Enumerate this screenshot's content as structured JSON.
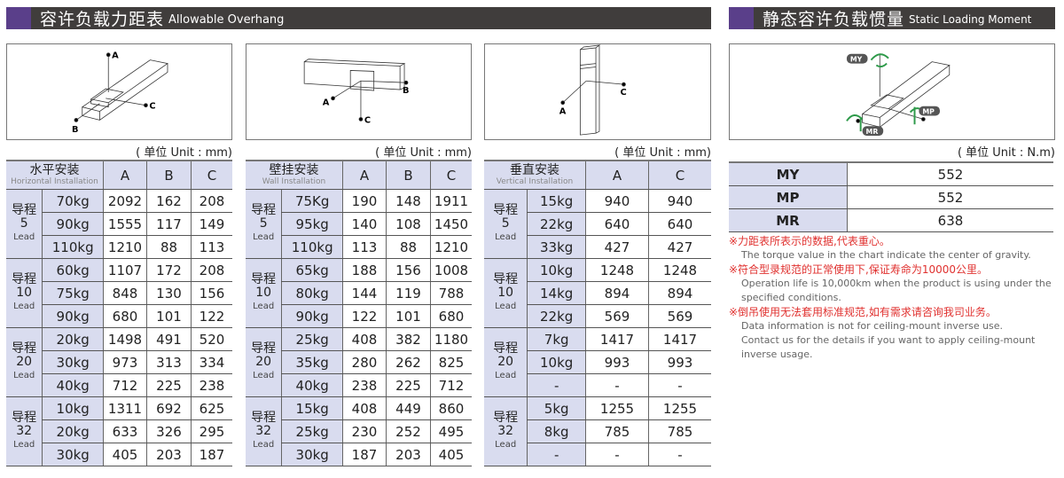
{
  "overhang": {
    "title_zh": "容许负载力距表",
    "title_en": "Allowable Overhang",
    "unit": "( 单位 Unit : mm)",
    "lead_label": "Lead",
    "lead_zh": "导程",
    "diagram_labels": {
      "a": "A",
      "b": "B",
      "c": "C"
    },
    "tables": [
      {
        "name_zh": "水平安装",
        "name_en": "Horizontal Installation",
        "columns": [
          "A",
          "B",
          "C"
        ],
        "groups": [
          {
            "lead": "5",
            "rows": [
              [
                "70kg",
                "2092",
                "162",
                "208"
              ],
              [
                "90kg",
                "1555",
                "117",
                "149"
              ],
              [
                "110kg",
                "1210",
                "88",
                "113"
              ]
            ]
          },
          {
            "lead": "10",
            "rows": [
              [
                "60kg",
                "1107",
                "172",
                "208"
              ],
              [
                "75kg",
                "848",
                "130",
                "156"
              ],
              [
                "90kg",
                "680",
                "101",
                "122"
              ]
            ]
          },
          {
            "lead": "20",
            "rows": [
              [
                "20kg",
                "1498",
                "491",
                "520"
              ],
              [
                "30kg",
                "973",
                "313",
                "334"
              ],
              [
                "40kg",
                "712",
                "225",
                "238"
              ]
            ]
          },
          {
            "lead": "32",
            "rows": [
              [
                "10kg",
                "1311",
                "692",
                "625"
              ],
              [
                "20kg",
                "633",
                "326",
                "295"
              ],
              [
                "30kg",
                "405",
                "203",
                "187"
              ]
            ]
          }
        ]
      },
      {
        "name_zh": "壁挂安装",
        "name_en": "Wall Installation",
        "columns": [
          "A",
          "B",
          "C"
        ],
        "groups": [
          {
            "lead": "5",
            "rows": [
              [
                "75Kg",
                "190",
                "148",
                "1911"
              ],
              [
                "95kg",
                "140",
                "108",
                "1450"
              ],
              [
                "110kg",
                "113",
                "88",
                "1210"
              ]
            ]
          },
          {
            "lead": "10",
            "rows": [
              [
                "65kg",
                "188",
                "156",
                "1008"
              ],
              [
                "80kg",
                "144",
                "119",
                "788"
              ],
              [
                "90kg",
                "122",
                "101",
                "680"
              ]
            ]
          },
          {
            "lead": "20",
            "rows": [
              [
                "25kg",
                "408",
                "382",
                "1180"
              ],
              [
                "35kg",
                "280",
                "262",
                "825"
              ],
              [
                "40kg",
                "238",
                "225",
                "712"
              ]
            ]
          },
          {
            "lead": "32",
            "rows": [
              [
                "15kg",
                "408",
                "449",
                "860"
              ],
              [
                "25kg",
                "230",
                "252",
                "495"
              ],
              [
                "30kg",
                "187",
                "203",
                "405"
              ]
            ]
          }
        ]
      },
      {
        "name_zh": "垂直安装",
        "name_en": "Vertical Installation",
        "columns": [
          "A",
          "C"
        ],
        "groups": [
          {
            "lead": "5",
            "rows": [
              [
                "15kg",
                "940",
                "940"
              ],
              [
                "22kg",
                "640",
                "640"
              ],
              [
                "33kg",
                "427",
                "427"
              ]
            ]
          },
          {
            "lead": "10",
            "rows": [
              [
                "10kg",
                "1248",
                "1248"
              ],
              [
                "14kg",
                "894",
                "894"
              ],
              [
                "22kg",
                "569",
                "569"
              ]
            ]
          },
          {
            "lead": "20",
            "rows": [
              [
                "7kg",
                "1417",
                "1417"
              ],
              [
                "10kg",
                "993",
                "993"
              ],
              [
                "-",
                "-",
                "-"
              ]
            ]
          },
          {
            "lead": "32",
            "rows": [
              [
                "5kg",
                "1255",
                "1255"
              ],
              [
                "8kg",
                "785",
                "785"
              ],
              [
                "-",
                "-",
                "-"
              ]
            ]
          }
        ]
      }
    ]
  },
  "moment": {
    "title_zh": "静态容许负载惯量",
    "title_en": "Static Loading Moment",
    "unit": "( 单位 Unit : N.m)",
    "diagram_labels": {
      "my": "MY",
      "mp": "MP",
      "mr": "MR"
    },
    "rows": [
      [
        "MY",
        "552"
      ],
      [
        "MP",
        "552"
      ],
      [
        "MR",
        "638"
      ]
    ],
    "notes": [
      {
        "zh": "※力距表所表示的数据,代表重心。",
        "en": [
          "The torque value in the chart indicate the center of gravity."
        ]
      },
      {
        "zh": "※符合型录规范的正常使用下,保证寿命为10000公里。",
        "en": [
          "Operation life is 10,000km when the product is using under the",
          "specified conditions."
        ]
      },
      {
        "zh": "※倒吊使用无法套用标准规范,如有需求请咨询我司业务。",
        "en": [
          "Data information is not for ceiling-mount inverse use.",
          "Contact us for the details if you want to apply ceiling-mount",
          "inverse usage."
        ]
      }
    ],
    "arrow_color": "#2e9a4a"
  },
  "colors": {
    "header_bg": "#403d3c",
    "header_accent": "#5a3f8a",
    "cell_shade": "#d9dcef",
    "note_red": "#e0312f"
  }
}
